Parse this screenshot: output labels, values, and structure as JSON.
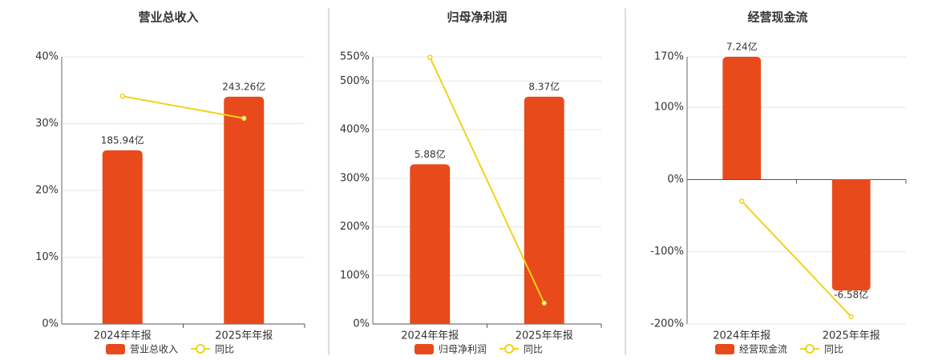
{
  "chart_data": [
    {
      "type": "bar",
      "title": "营业总收入",
      "categories": [
        "2024年年报",
        "2025年年报"
      ],
      "series": [
        {
          "name": "营业总收入",
          "color": "#e84a1b",
          "values": [
            185.94,
            243.26
          ],
          "value_labels": [
            "185.94亿",
            "243.26亿"
          ],
          "axis": "y2"
        },
        {
          "name": "同比",
          "type": "line",
          "color": "#f2d21b",
          "values": [
            34.1,
            30.8
          ]
        }
      ],
      "ylim": [
        0,
        40
      ],
      "yticks": [
        {
          "value": 0,
          "label": "0%"
        },
        {
          "value": 10,
          "label": "10%"
        },
        {
          "value": 20,
          "label": "20%"
        },
        {
          "value": 30,
          "label": "30%"
        },
        {
          "value": 40,
          "label": "40%"
        }
      ],
      "y2lim": [
        0,
        286
      ],
      "grid": true
    },
    {
      "type": "bar",
      "title": "归母净利润",
      "categories": [
        "2024年年报",
        "2025年年报"
      ],
      "series": [
        {
          "name": "归母净利润",
          "color": "#e84a1b",
          "values": [
            5.88,
            8.37
          ],
          "value_labels": [
            "5.88亿",
            "8.37亿"
          ],
          "axis": "y2"
        },
        {
          "name": "同比",
          "type": "line",
          "color": "#f2d21b",
          "values": [
            549,
            43
          ]
        }
      ],
      "ylim": [
        0,
        550
      ],
      "yticks": [
        {
          "value": 0,
          "label": "0%"
        },
        {
          "value": 100,
          "label": "100%"
        },
        {
          "value": 200,
          "label": "200%"
        },
        {
          "value": 300,
          "label": "300%"
        },
        {
          "value": 400,
          "label": "400%"
        },
        {
          "value": 500,
          "label": "500%"
        },
        {
          "value": 550,
          "label": "550%"
        }
      ],
      "y2lim": [
        0,
        9.84
      ],
      "grid": true
    },
    {
      "type": "bar",
      "title": "经营现金流",
      "categories": [
        "2024年年报",
        "2025年年报"
      ],
      "series": [
        {
          "name": "经营现金流",
          "color": "#e84a1b",
          "values": [
            7.24,
            -6.58
          ],
          "value_labels": [
            "7.24亿",
            "-6.58亿"
          ],
          "axis": "y2"
        },
        {
          "name": "同比",
          "type": "line",
          "color": "#f2d21b",
          "values": [
            -30,
            -190
          ]
        }
      ],
      "ylim": [
        -200,
        170
      ],
      "yticks": [
        {
          "value": -200,
          "label": "-200%"
        },
        {
          "value": -100,
          "label": "-100%"
        },
        {
          "value": 0,
          "label": "0%"
        },
        {
          "value": 100,
          "label": "100%"
        },
        {
          "value": 170,
          "label": "170%"
        }
      ],
      "y2lim": [
        -8.56,
        7.24
      ],
      "grid": true
    }
  ]
}
